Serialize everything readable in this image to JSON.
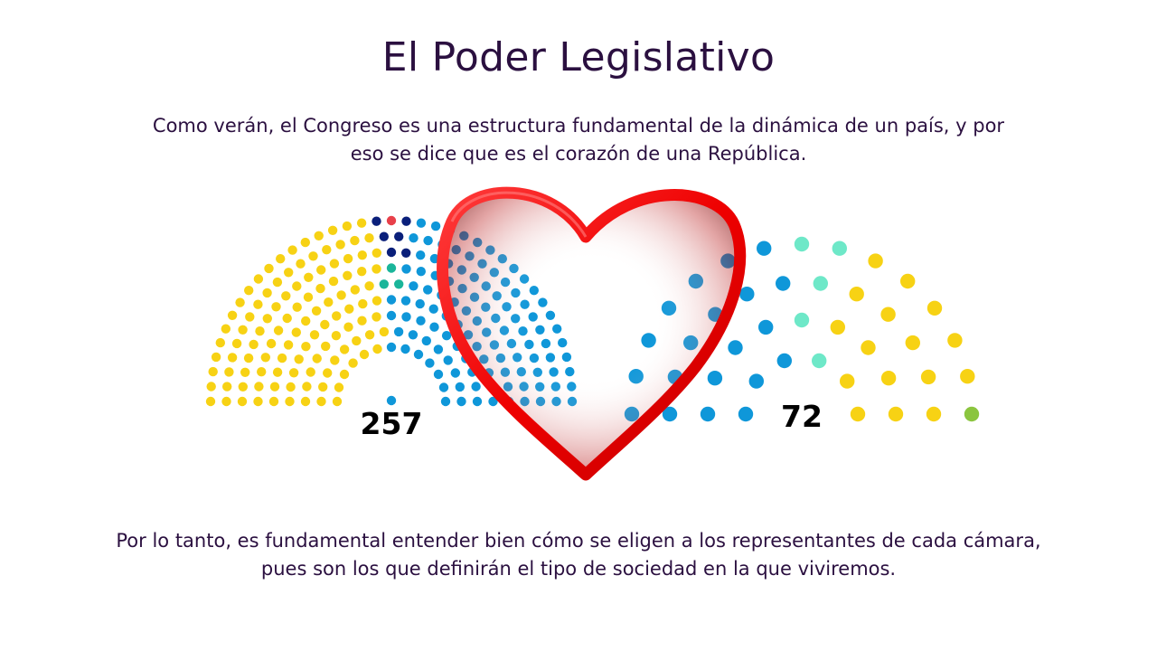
{
  "slide": {
    "title": "El Poder Legislativo",
    "intro_lines": [
      "Como verán, el Congreso es una estructura fundamental de la dinámica de un país, y por",
      "eso se dice que es el corazón de una República."
    ],
    "outro_lines": [
      "Por lo tanto, es fundamental entender bien cómo se eligen a los representantes de cada cámara,",
      "pues son los que definirán el tipo de sociedad en la que viviremos."
    ]
  },
  "chambers": {
    "diputados": {
      "seats": "257"
    },
    "senado": {
      "seats": "72"
    }
  },
  "colors": {
    "yellow": "#f7d214",
    "blue": "#0f97d9",
    "teal": "#1ab59a",
    "navy": "#0a1f7a",
    "mint": "#6ee8c8",
    "heart": "#ee0000"
  },
  "icons": [
    "heart-icon",
    "hemicycle-diputados",
    "hemicycle-senado"
  ]
}
